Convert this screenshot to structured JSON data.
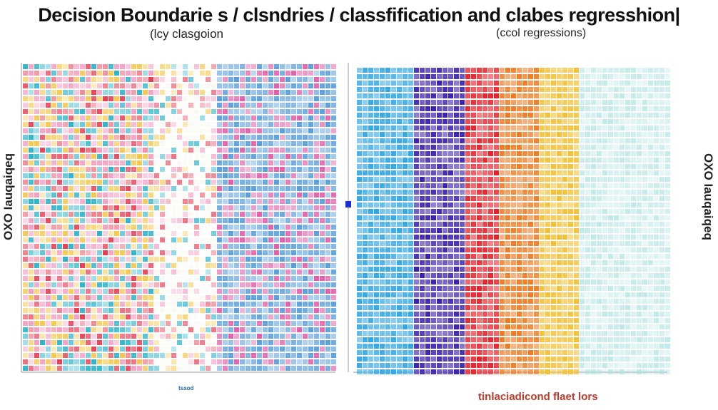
{
  "chart_data": [
    {
      "type": "heatmap",
      "title": "Decision Boundarie s / clsndries / classfification and clabes regresshion|",
      "subtitle": "(lcy clasgoion",
      "ylabel": "OXO Iauqaiqeq",
      "xlabel": "tsaod",
      "color_bands": [
        "#1ab0c8",
        "#e8334a",
        "#f5c542",
        "#f49ac1",
        "#f7f7f0",
        "#3a8fd8",
        "#e0409a"
      ]
    },
    {
      "type": "heatmap",
      "subtitle": "(ccol regressions)",
      "ylabel": "OXO Iauqaiqeq",
      "xlabel": "tinlaciadicond flaet lors",
      "color_bands": [
        "#2ea8e8",
        "#3b1fb0",
        "#e8222a",
        "#f07a1e",
        "#f5c030",
        "#a8e0e0"
      ]
    }
  ],
  "colors": {
    "accent_red": "#c0392b",
    "accent_blue": "#1a2bd8"
  }
}
